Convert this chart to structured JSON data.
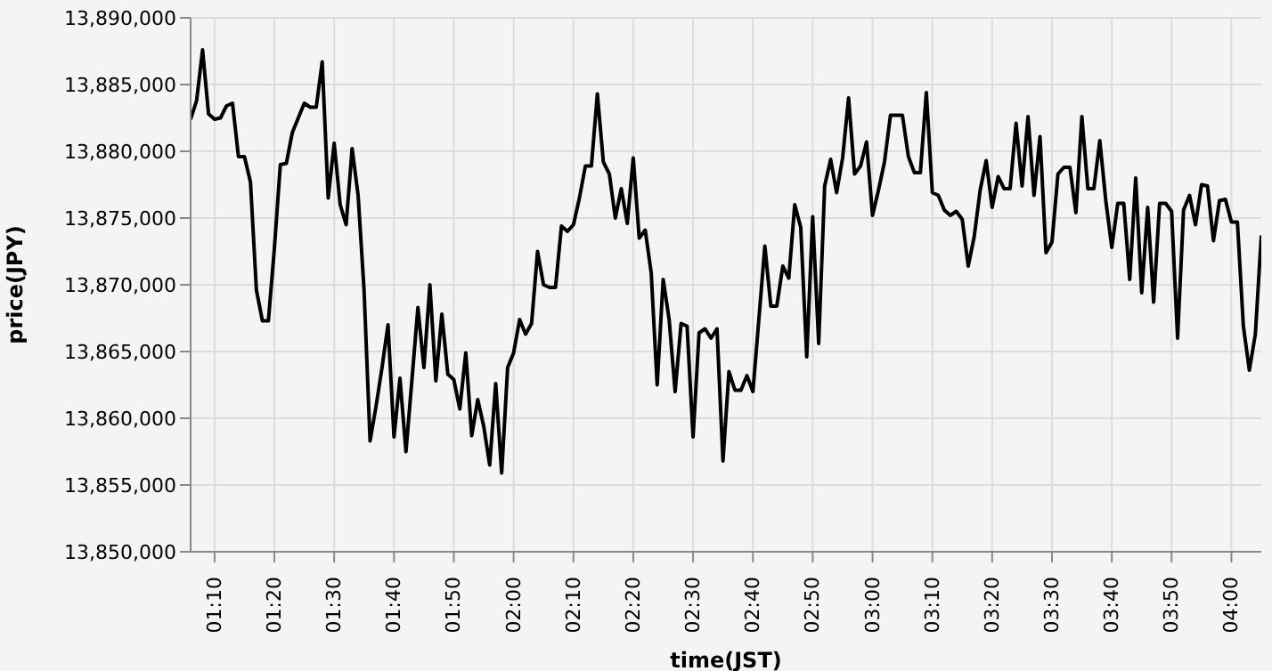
{
  "chart_data": {
    "type": "line",
    "xlabel": "time(JST)",
    "ylabel": "price(JPY)",
    "x": [
      1.1,
      1.1167,
      1.1333,
      1.15,
      1.1667,
      1.1833,
      1.2,
      1.2167,
      1.2333,
      1.25,
      1.2667,
      1.2833,
      1.3,
      1.3167,
      1.3333,
      1.35,
      1.3667,
      1.3833,
      1.4,
      1.4167,
      1.4333,
      1.45,
      1.4667,
      1.4833,
      1.5,
      1.5167,
      1.5333,
      1.55,
      1.5667,
      1.5833,
      1.6,
      1.6167,
      1.6333,
      1.65,
      1.6667,
      1.6833,
      1.7,
      1.7167,
      1.7333,
      1.75,
      1.7667,
      1.7833,
      1.8,
      1.8167,
      1.8333,
      1.85,
      1.8667,
      1.8833,
      1.9,
      1.9167,
      1.9333,
      1.95,
      1.9667,
      1.9833,
      2,
      2.0167,
      2.0333,
      2.05,
      2.0667,
      2.0833,
      2.1,
      2.1167,
      2.1333,
      2.15,
      2.1667,
      2.1833,
      2.2,
      2.2167,
      2.2333,
      2.25,
      2.2667,
      2.2833,
      2.3,
      2.3167,
      2.3333,
      2.35,
      2.3667,
      2.3833,
      2.4,
      2.4167,
      2.4333,
      2.45,
      2.4667,
      2.4833,
      2.5,
      2.5167,
      2.5333,
      2.55,
      2.5667,
      2.5833,
      2.6,
      2.6167,
      2.6333,
      2.65,
      2.6667,
      2.6833,
      2.7,
      2.7167,
      2.7333,
      2.75,
      2.7667,
      2.7833,
      2.8,
      2.8167,
      2.8333,
      2.85,
      2.8667,
      2.8833,
      2.9,
      2.9167,
      2.9333,
      2.95,
      2.9667,
      2.9833,
      3,
      3.0167,
      3.0333,
      3.05,
      3.0667,
      3.0833,
      3.1,
      3.1167,
      3.1333,
      3.15,
      3.1667,
      3.1833,
      3.2,
      3.2167,
      3.2333,
      3.25,
      3.2667,
      3.2833,
      3.3,
      3.3167,
      3.3333,
      3.35,
      3.3667,
      3.3833,
      3.4,
      3.4167,
      3.4333,
      3.45,
      3.4667,
      3.4833,
      3.5,
      3.5167,
      3.5333,
      3.55,
      3.5667,
      3.5833,
      3.6,
      3.6167,
      3.6333,
      3.65,
      3.6667,
      3.6833,
      3.7,
      3.7167,
      3.7333,
      3.75,
      3.7667,
      3.7833,
      3.8,
      3.8167,
      3.8333,
      3.85,
      3.8667,
      3.8833,
      3.9,
      3.9167,
      3.9333,
      3.95,
      3.9667,
      3.9833,
      4,
      4.0167,
      4.0333,
      4.05,
      4.0667,
      4.0833
    ],
    "series": [
      {
        "color": "#000000",
        "values": [
          13882400,
          13883800,
          13887600,
          13882800,
          13882400,
          13882500,
          13883400,
          13883600,
          13879600,
          13879600,
          13877700,
          13869600,
          13867300,
          13867300,
          13872700,
          13879000,
          13879100,
          13881400,
          13882500,
          13883600,
          13883300,
          13883300,
          13886700,
          13876500,
          13880600,
          13876000,
          13874500,
          13880200,
          13876700,
          13869600,
          13858300,
          13860900,
          13863800,
          13867000,
          13858600,
          13863000,
          13857500,
          13862900,
          13868300,
          13863800,
          13870000,
          13862800,
          13867800,
          13863300,
          13862900,
          13860700,
          13864900,
          13858700,
          13861400,
          13859400,
          13856500,
          13862600,
          13855900,
          13863800,
          13864900,
          13867400,
          13866300,
          13867100,
          13872500,
          13870000,
          13869800,
          13869800,
          13874400,
          13874000,
          13874500,
          13876500,
          13878900,
          13878900,
          13884300,
          13879200,
          13878300,
          13875000,
          13877200,
          13874600,
          13879500,
          13873500,
          13874100,
          13870900,
          13862500,
          13870400,
          13867400,
          13862000,
          13867100,
          13866900,
          13858600,
          13866400,
          13866700,
          13866000,
          13866700,
          13856800,
          13863500,
          13862100,
          13862100,
          13863200,
          13862000,
          13867400,
          13872900,
          13868400,
          13868400,
          13871400,
          13870500,
          13876000,
          13874300,
          13864600,
          13875100,
          13865600,
          13877400,
          13879400,
          13876900,
          13879500,
          13884000,
          13878300,
          13878900,
          13880700,
          13875200,
          13877100,
          13879200,
          13882700,
          13882700,
          13882700,
          13879600,
          13878400,
          13878400,
          13884400,
          13876900,
          13876700,
          13875600,
          13875200,
          13875500,
          13874900,
          13871400,
          13873600,
          13877100,
          13879300,
          13875800,
          13878100,
          13877200,
          13877200,
          13882100,
          13877400,
          13882600,
          13876700,
          13881100,
          13872400,
          13873200,
          13878300,
          13878800,
          13878800,
          13875400,
          13882600,
          13877200,
          13877200,
          13880800,
          13876300,
          13872800,
          13876100,
          13876100,
          13870400,
          13878000,
          13869400,
          13875800,
          13868700,
          13876100,
          13876100,
          13875500,
          13866000,
          13875600,
          13876700,
          13874500,
          13877500,
          13877400,
          13873300,
          13876300,
          13876400,
          13874700,
          13874700,
          13866900,
          13863600,
          13866300,
          13873700
        ]
      }
    ],
    "xlim": [
      1.1,
      4.0833
    ],
    "xticks": [
      {
        "value": 1.1667,
        "label": "01:10"
      },
      {
        "value": 1.3333,
        "label": "01:20"
      },
      {
        "value": 1.5,
        "label": "01:30"
      },
      {
        "value": 1.6667,
        "label": "01:40"
      },
      {
        "value": 1.8333,
        "label": "01:50"
      },
      {
        "value": 2,
        "label": "02:00"
      },
      {
        "value": 2.1667,
        "label": "02:10"
      },
      {
        "value": 2.3333,
        "label": "02:20"
      },
      {
        "value": 2.5,
        "label": "02:30"
      },
      {
        "value": 2.6667,
        "label": "02:40"
      },
      {
        "value": 2.8333,
        "label": "02:50"
      },
      {
        "value": 3,
        "label": "03:00"
      },
      {
        "value": 3.1667,
        "label": "03:10"
      },
      {
        "value": 3.3333,
        "label": "03:20"
      },
      {
        "value": 3.5,
        "label": "03:30"
      },
      {
        "value": 3.6667,
        "label": "03:40"
      },
      {
        "value": 3.8333,
        "label": "03:50"
      },
      {
        "value": 4,
        "label": "04:00"
      }
    ],
    "ylim": [
      13850000,
      13890000
    ],
    "yticks": [
      {
        "value": 13850000,
        "label": "13,850,000"
      },
      {
        "value": 13855000,
        "label": "13,855,000"
      },
      {
        "value": 13860000,
        "label": "13,860,000"
      },
      {
        "value": 13865000,
        "label": "13,865,000"
      },
      {
        "value": 13870000,
        "label": "13,870,000"
      },
      {
        "value": 13875000,
        "label": "13,875,000"
      },
      {
        "value": 13880000,
        "label": "13,880,000"
      },
      {
        "value": 13885000,
        "label": "13,885,000"
      },
      {
        "value": 13890000,
        "label": "13,890,000"
      }
    ],
    "grid": true,
    "legend": false,
    "marker": "none",
    "line_style": "solid"
  }
}
